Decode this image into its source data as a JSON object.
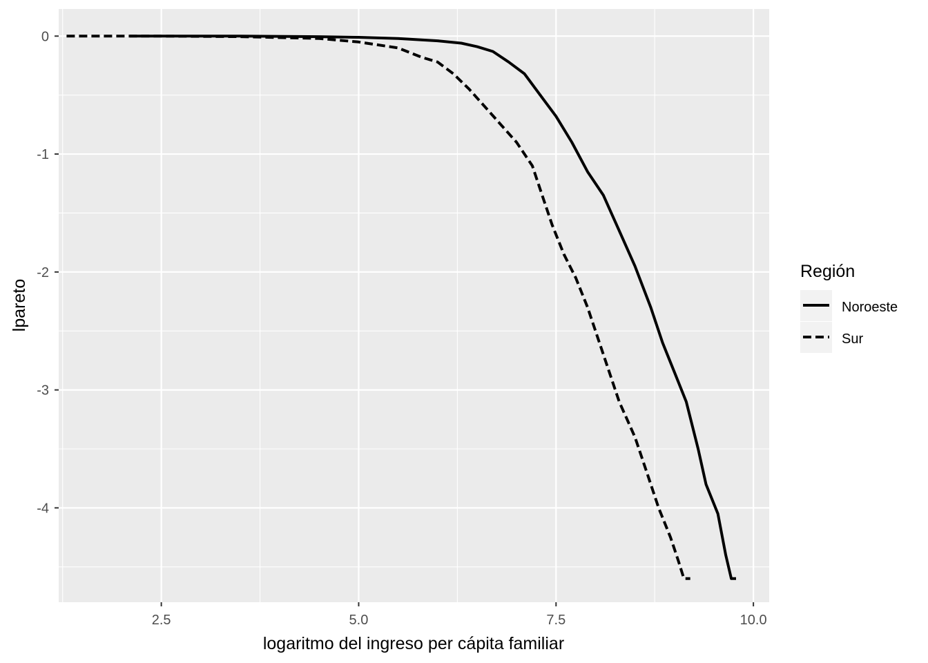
{
  "chart_data": {
    "type": "line",
    "title": "",
    "xlabel": "logaritmo del ingreso per cápita familiar",
    "ylabel": "lpareto",
    "xlim": [
      1.2,
      10.2
    ],
    "ylim": [
      -4.8,
      0.23
    ],
    "x_ticks": [
      2.5,
      5.0,
      7.5,
      10.0
    ],
    "x_tick_labels": [
      "2.5",
      "5.0",
      "7.5",
      "10.0"
    ],
    "y_ticks": [
      0,
      -1,
      -2,
      -3,
      -4
    ],
    "y_tick_labels": [
      "0",
      "-1",
      "-2",
      "-3",
      "-4"
    ],
    "grid": true,
    "legend": {
      "title": "Región",
      "placement": "right"
    },
    "series": [
      {
        "name": "Noroeste",
        "line_style": "solid",
        "color": "#000000",
        "points": [
          [
            2.1,
            0.0
          ],
          [
            3.5,
            0.0
          ],
          [
            4.5,
            -0.005
          ],
          [
            5.0,
            -0.01
          ],
          [
            5.5,
            -0.02
          ],
          [
            6.0,
            -0.04
          ],
          [
            6.3,
            -0.06
          ],
          [
            6.5,
            -0.09
          ],
          [
            6.7,
            -0.13
          ],
          [
            6.9,
            -0.22
          ],
          [
            7.1,
            -0.32
          ],
          [
            7.3,
            -0.5
          ],
          [
            7.5,
            -0.68
          ],
          [
            7.7,
            -0.9
          ],
          [
            7.9,
            -1.15
          ],
          [
            8.1,
            -1.35
          ],
          [
            8.3,
            -1.65
          ],
          [
            8.5,
            -1.95
          ],
          [
            8.7,
            -2.3
          ],
          [
            8.85,
            -2.6
          ],
          [
            9.0,
            -2.85
          ],
          [
            9.15,
            -3.1
          ],
          [
            9.3,
            -3.5
          ],
          [
            9.4,
            -3.8
          ],
          [
            9.55,
            -4.05
          ],
          [
            9.65,
            -4.4
          ],
          [
            9.72,
            -4.6
          ],
          [
            9.78,
            -4.6
          ]
        ]
      },
      {
        "name": "Sur",
        "line_style": "dashed",
        "color": "#000000",
        "points": [
          [
            1.3,
            0.0
          ],
          [
            2.5,
            0.0
          ],
          [
            3.5,
            -0.005
          ],
          [
            4.5,
            -0.02
          ],
          [
            5.0,
            -0.05
          ],
          [
            5.5,
            -0.1
          ],
          [
            5.8,
            -0.18
          ],
          [
            6.0,
            -0.22
          ],
          [
            6.2,
            -0.32
          ],
          [
            6.4,
            -0.45
          ],
          [
            6.6,
            -0.6
          ],
          [
            6.8,
            -0.75
          ],
          [
            7.0,
            -0.9
          ],
          [
            7.2,
            -1.1
          ],
          [
            7.3,
            -1.3
          ],
          [
            7.45,
            -1.6
          ],
          [
            7.6,
            -1.85
          ],
          [
            7.75,
            -2.05
          ],
          [
            7.9,
            -2.3
          ],
          [
            8.1,
            -2.7
          ],
          [
            8.3,
            -3.1
          ],
          [
            8.5,
            -3.4
          ],
          [
            8.65,
            -3.7
          ],
          [
            8.8,
            -4.0
          ],
          [
            8.95,
            -4.25
          ],
          [
            9.05,
            -4.45
          ],
          [
            9.12,
            -4.6
          ],
          [
            9.2,
            -4.6
          ]
        ]
      }
    ]
  }
}
